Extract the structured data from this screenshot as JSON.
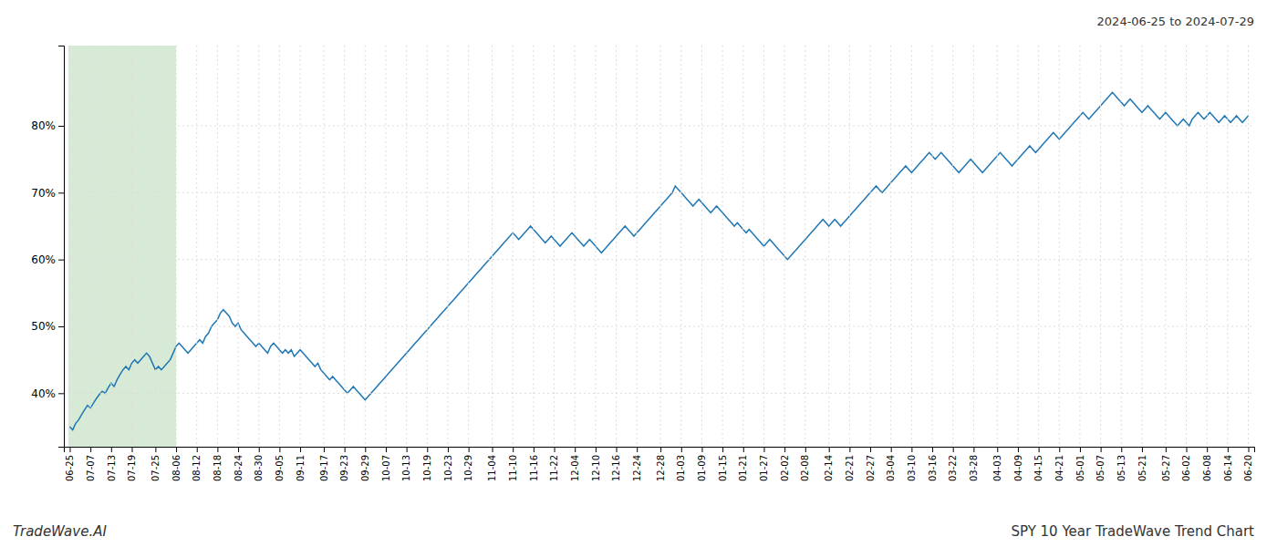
{
  "chart_data": {
    "type": "line",
    "title": "2024-06-25 to 2024-07-29",
    "subtitle": "SPY 10 Year TradeWave Trend Chart",
    "annotations": [
      "TradeWave.AI"
    ],
    "color": "#1f77b4",
    "grid": true,
    "ylim": [
      32,
      92
    ],
    "yticks": [
      {
        "value": 40,
        "label": "40%"
      },
      {
        "value": 50,
        "label": "50%"
      },
      {
        "value": 60,
        "label": "60%"
      },
      {
        "value": 70,
        "label": "70%"
      },
      {
        "value": 80,
        "label": "80%"
      }
    ],
    "highlight": {
      "from": "06-25",
      "to": "08-06",
      "color": "#d6ead6"
    },
    "categories": [
      "06-25",
      null,
      null,
      null,
      null,
      null,
      null,
      "07-07",
      null,
      null,
      null,
      null,
      null,
      null,
      "07-13",
      null,
      null,
      null,
      null,
      null,
      null,
      "07-19",
      null,
      null,
      null,
      null,
      null,
      null,
      null,
      "07-25",
      null,
      null,
      null,
      null,
      null,
      null,
      "08-06",
      null,
      null,
      null,
      null,
      null,
      null,
      "08-12",
      null,
      null,
      null,
      null,
      null,
      null,
      "08-18",
      null,
      null,
      null,
      null,
      null,
      null,
      "08-24",
      null,
      null,
      null,
      null,
      null,
      null,
      "08-30",
      null,
      null,
      null,
      null,
      null,
      null,
      "09-05",
      null,
      null,
      null,
      null,
      null,
      null,
      "09-11",
      null,
      null,
      null,
      null,
      null,
      null,
      null,
      "09-17",
      null,
      null,
      null,
      null,
      null,
      null,
      "09-23",
      null,
      null,
      null,
      null,
      null,
      null,
      "09-29",
      null,
      null,
      null,
      null,
      null,
      null,
      "10-07",
      null,
      null,
      null,
      null,
      null,
      null,
      "10-13",
      null,
      null,
      null,
      null,
      null,
      null,
      "10-19",
      null,
      null,
      null,
      null,
      null,
      null,
      "10-23",
      null,
      null,
      null,
      null,
      null,
      null,
      "10-29",
      null,
      null,
      null,
      null,
      null,
      null,
      null,
      "11-04",
      null,
      null,
      null,
      null,
      null,
      null,
      "11-10",
      null,
      null,
      null,
      null,
      null,
      null,
      "11-16",
      null,
      null,
      null,
      null,
      null,
      null,
      "11-22",
      null,
      null,
      null,
      null,
      null,
      null,
      "12-04",
      null,
      null,
      null,
      null,
      null,
      null,
      "12-10",
      null,
      null,
      null,
      null,
      null,
      null,
      "12-16",
      null,
      null,
      null,
      null,
      null,
      null,
      "12-24",
      null,
      null,
      null,
      null,
      null,
      null,
      null,
      "12-28",
      null,
      null,
      null,
      null,
      null,
      null,
      "01-03",
      null,
      null,
      null,
      null,
      null,
      null,
      "01-09",
      null,
      null,
      null,
      null,
      null,
      null,
      "01-15",
      null,
      null,
      null,
      null,
      null,
      null,
      "01-21",
      null,
      null,
      null,
      null,
      null,
      null,
      "01-27",
      null,
      null,
      null,
      null,
      null,
      null,
      "02-02",
      null,
      null,
      null,
      null,
      null,
      null,
      "02-08",
      null,
      null,
      null,
      null,
      null,
      null,
      null,
      "02-14",
      null,
      null,
      null,
      null,
      null,
      null,
      "02-21",
      null,
      null,
      null,
      null,
      null,
      null,
      "02-27",
      null,
      null,
      null,
      null,
      null,
      null,
      "03-04",
      null,
      null,
      null,
      null,
      null,
      null,
      "03-10",
      null,
      null,
      null,
      null,
      null,
      null,
      "03-16",
      null,
      null,
      null,
      null,
      null,
      null,
      "03-22",
      null,
      null,
      null,
      null,
      null,
      null,
      "03-28",
      null,
      null,
      null,
      null,
      null,
      null,
      null,
      "04-03",
      null,
      null,
      null,
      null,
      null,
      null,
      "04-09",
      null,
      null,
      null,
      null,
      null,
      null,
      "04-15",
      null,
      null,
      null,
      null,
      null,
      null,
      "04-21",
      null,
      null,
      null,
      null,
      null,
      null,
      "05-01",
      null,
      null,
      null,
      null,
      null,
      null,
      "05-07",
      null,
      null,
      null,
      null,
      null,
      null,
      "05-13",
      null,
      null,
      null,
      null,
      null,
      null,
      "05-21",
      null,
      null,
      null,
      null,
      null,
      null,
      null,
      "05-27",
      null,
      null,
      null,
      null,
      null,
      null,
      "06-02",
      null,
      null,
      null,
      null,
      null,
      null,
      "06-08",
      null,
      null,
      null,
      null,
      null,
      null,
      "06-14",
      null,
      null,
      null,
      null,
      null,
      null,
      "06-20"
    ],
    "values": [
      35.0,
      34.5,
      35.5,
      36.0,
      36.8,
      37.5,
      38.2,
      37.8,
      38.5,
      39.2,
      39.8,
      40.3,
      40.0,
      40.8,
      41.5,
      41.0,
      42.0,
      42.8,
      43.5,
      44.0,
      43.5,
      44.5,
      45.0,
      44.5,
      45.0,
      45.5,
      46.0,
      45.5,
      44.5,
      43.5,
      44.0,
      43.5,
      44.0,
      44.5,
      45.0,
      46.0,
      47.0,
      47.5,
      47.0,
      46.5,
      46.0,
      46.5,
      47.0,
      47.5,
      48.0,
      47.5,
      48.5,
      49.0,
      50.0,
      50.5,
      51.0,
      52.0,
      52.5,
      52.0,
      51.5,
      50.5,
      50.0,
      50.5,
      49.5,
      49.0,
      48.5,
      48.0,
      47.5,
      47.0,
      47.5,
      47.0,
      46.5,
      46.0,
      47.0,
      47.5,
      47.0,
      46.5,
      46.0,
      46.5,
      46.0,
      46.5,
      45.5,
      46.0,
      46.5,
      46.0,
      45.5,
      45.0,
      44.5,
      44.0,
      44.5,
      43.5,
      43.0,
      42.5,
      42.0,
      42.5,
      42.0,
      41.5,
      41.0,
      40.5,
      40.0,
      40.5,
      41.0,
      40.5,
      40.0,
      39.5,
      39.0,
      39.5,
      40.0,
      40.5,
      41.0,
      41.5,
      42.0,
      42.5,
      43.0,
      43.5,
      44.0,
      44.5,
      45.0,
      45.5,
      46.0,
      46.5,
      47.0,
      47.5,
      48.0,
      48.5,
      49.0,
      49.5,
      50.0,
      50.5,
      51.0,
      51.5,
      52.0,
      52.5,
      53.0,
      53.5,
      54.0,
      54.5,
      55.0,
      55.5,
      56.0,
      56.5,
      57.0,
      57.5,
      58.0,
      58.5,
      59.0,
      59.5,
      60.0,
      60.5,
      61.0,
      61.5,
      62.0,
      62.5,
      63.0,
      63.5,
      64.0,
      63.5,
      63.0,
      63.5,
      64.0,
      64.5,
      65.0,
      64.5,
      64.0,
      63.5,
      63.0,
      62.5,
      63.0,
      63.5,
      63.0,
      62.5,
      62.0,
      62.5,
      63.0,
      63.5,
      64.0,
      63.5,
      63.0,
      62.5,
      62.0,
      62.5,
      63.0,
      62.5,
      62.0,
      61.5,
      61.0,
      61.5,
      62.0,
      62.5,
      63.0,
      63.5,
      64.0,
      64.5,
      65.0,
      64.5,
      64.0,
      63.5,
      64.0,
      64.5,
      65.0,
      65.5,
      66.0,
      66.5,
      67.0,
      67.5,
      68.0,
      68.5,
      69.0,
      69.5,
      70.0,
      71.0,
      70.5,
      70.0,
      69.5,
      69.0,
      68.5,
      68.0,
      68.5,
      69.0,
      68.5,
      68.0,
      67.5,
      67.0,
      67.5,
      68.0,
      67.5,
      67.0,
      66.5,
      66.0,
      65.5,
      65.0,
      65.5,
      65.0,
      64.5,
      64.0,
      64.5,
      64.0,
      63.5,
      63.0,
      62.5,
      62.0,
      62.5,
      63.0,
      62.5,
      62.0,
      61.5,
      61.0,
      60.5,
      60.0,
      60.5,
      61.0,
      61.5,
      62.0,
      62.5,
      63.0,
      63.5,
      64.0,
      64.5,
      65.0,
      65.5,
      66.0,
      65.5,
      65.0,
      65.5,
      66.0,
      65.5,
      65.0,
      65.5,
      66.0,
      66.5,
      67.0,
      67.5,
      68.0,
      68.5,
      69.0,
      69.5,
      70.0,
      70.5,
      71.0,
      70.5,
      70.0,
      70.5,
      71.0,
      71.5,
      72.0,
      72.5,
      73.0,
      73.5,
      74.0,
      73.5,
      73.0,
      73.5,
      74.0,
      74.5,
      75.0,
      75.5,
      76.0,
      75.5,
      75.0,
      75.5,
      76.0,
      75.5,
      75.0,
      74.5,
      74.0,
      73.5,
      73.0,
      73.5,
      74.0,
      74.5,
      75.0,
      74.5,
      74.0,
      73.5,
      73.0,
      73.5,
      74.0,
      74.5,
      75.0,
      75.5,
      76.0,
      75.5,
      75.0,
      74.5,
      74.0,
      74.5,
      75.0,
      75.5,
      76.0,
      76.5,
      77.0,
      76.5,
      76.0,
      76.5,
      77.0,
      77.5,
      78.0,
      78.5,
      79.0,
      78.5,
      78.0,
      78.5,
      79.0,
      79.5,
      80.0,
      80.5,
      81.0,
      81.5,
      82.0,
      81.5,
      81.0,
      81.5,
      82.0,
      82.5,
      83.0,
      83.5,
      84.0,
      84.5,
      85.0,
      84.5,
      84.0,
      83.5,
      83.0,
      83.5,
      84.0,
      83.5,
      83.0,
      82.5,
      82.0,
      82.5,
      83.0,
      82.5,
      82.0,
      81.5,
      81.0,
      81.5,
      82.0,
      81.5,
      81.0,
      80.5,
      80.0,
      80.5,
      81.0,
      80.5,
      80.0,
      81.0,
      81.5,
      82.0,
      81.5,
      81.0,
      81.5,
      82.0,
      81.5,
      81.0,
      80.5,
      81.0,
      81.5,
      81.0,
      80.5,
      81.0,
      81.5,
      81.0,
      80.5,
      81.0,
      81.5
    ]
  }
}
